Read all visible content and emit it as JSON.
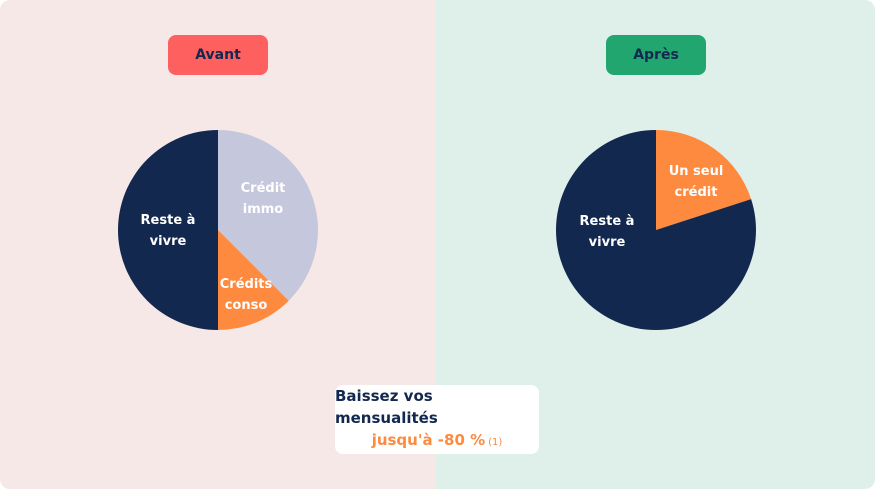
{
  "colors": {
    "avant_bg": "#f6e8e6",
    "apres_bg": "#dff0ea",
    "avant_pill": "#fe5f5f",
    "apres_pill": "#21a66f",
    "navy": "#13284f",
    "orange": "#fe8a3f",
    "lavender": "#c5c7dd"
  },
  "avant": {
    "label": "Avant"
  },
  "apres": {
    "label": "Après"
  },
  "callout": {
    "title": "Baissez vos mensualités",
    "highlight": "jusqu'à -80 %",
    "note": "(1)"
  },
  "chart_data": [
    {
      "type": "pie",
      "title": "Avant",
      "slices": [
        {
          "label": "Crédit immo",
          "value": 37.5,
          "color": "#c5c7dd",
          "label_lines": [
            "Crédit",
            "immo"
          ]
        },
        {
          "label": "Crédits conso",
          "value": 12.5,
          "color": "#fe8a3f",
          "label_lines": [
            "Crédits",
            "conso"
          ]
        },
        {
          "label": "Reste à vivre",
          "value": 50,
          "color": "#13284f",
          "label_lines": [
            "Reste à",
            "vivre"
          ]
        }
      ]
    },
    {
      "type": "pie",
      "title": "Après",
      "slices": [
        {
          "label": "Un seul crédit",
          "value": 20,
          "color": "#fe8a3f",
          "label_lines": [
            "Un seul",
            "crédit"
          ]
        },
        {
          "label": "Reste à vivre",
          "value": 80,
          "color": "#13284f",
          "label_lines": [
            "Reste à",
            "vivre"
          ]
        }
      ]
    }
  ]
}
